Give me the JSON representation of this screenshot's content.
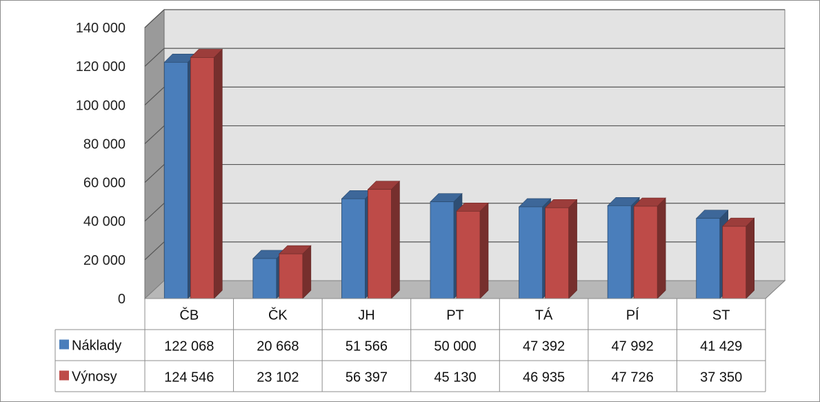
{
  "chart_data": {
    "type": "bar",
    "categories": [
      "ČB",
      "ČK",
      "JH",
      "PT",
      "TÁ",
      "PÍ",
      "ST"
    ],
    "series": [
      {
        "name": "Náklady",
        "color": "#4a7ebb",
        "values": [
          122068,
          20668,
          51566,
          50000,
          47392,
          47992,
          41429
        ],
        "labels": [
          "122 068",
          "20 668",
          "51 566",
          "50 000",
          "47 392",
          "47 992",
          "41 429"
        ]
      },
      {
        "name": "Výnosy",
        "color": "#be4b48",
        "values": [
          124546,
          23102,
          56397,
          45130,
          46935,
          47726,
          37350
        ],
        "labels": [
          "124 546",
          "23 102",
          "56 397",
          "45 130",
          "46 935",
          "47 726",
          "37 350"
        ]
      }
    ],
    "yticks": [
      0,
      20000,
      40000,
      60000,
      80000,
      100000,
      120000,
      140000
    ],
    "ytick_labels": [
      "0",
      "20 000",
      "40 000",
      "60 000",
      "80 000",
      "100 000",
      "120 000",
      "140 000"
    ],
    "ylim": [
      0,
      140000
    ],
    "grid": true,
    "style": "3d-clustered-column with data table",
    "legend": "data-table-left"
  }
}
